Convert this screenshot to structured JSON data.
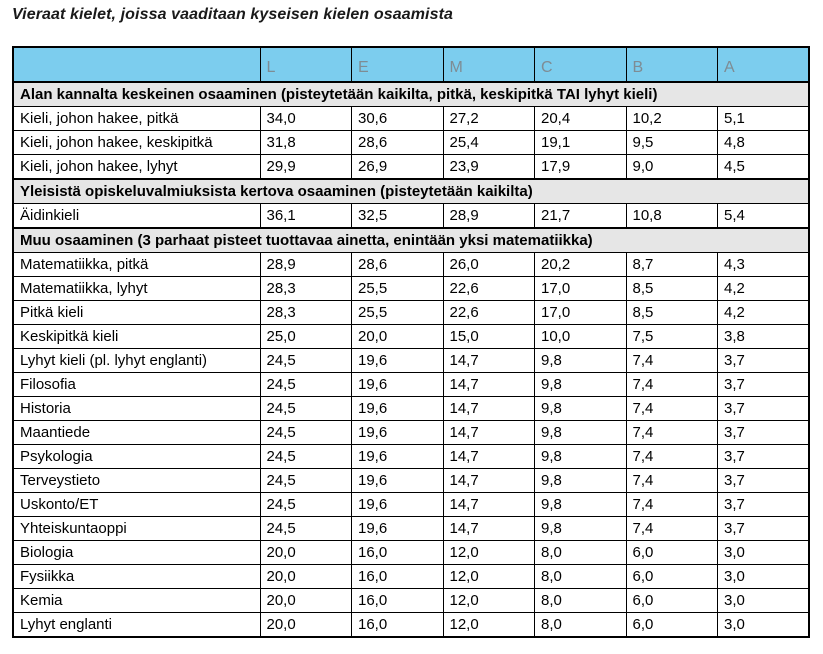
{
  "page": {
    "title": "Vieraat kielet, joissa vaaditaan kyseisen kielen osaamista"
  },
  "table": {
    "grade_headers": [
      "L",
      "E",
      "M",
      "C",
      "B",
      "A"
    ],
    "colors": {
      "header_bg": "#7ccdee",
      "header_text": "#7e8c94",
      "section_bg": "#e6e6e6",
      "row_bg": "#ffffff",
      "border": "#000000"
    },
    "rows": [
      {
        "type": "section",
        "label": "Alan kannalta keskeinen osaaminen (pisteytetään kaikilta, pitkä, keskipitkä TAI lyhyt kieli)"
      },
      {
        "type": "data",
        "label": "Kieli, johon hakee, pitkä",
        "values": [
          "34,0",
          "30,6",
          "27,2",
          "20,4",
          "10,2",
          "5,1"
        ]
      },
      {
        "type": "data",
        "label": "Kieli, johon hakee, keskipitkä",
        "values": [
          "31,8",
          "28,6",
          "25,4",
          "19,1",
          "9,5",
          "4,8"
        ]
      },
      {
        "type": "data",
        "label": "Kieli, johon hakee, lyhyt",
        "values": [
          "29,9",
          "26,9",
          "23,9",
          "17,9",
          "9,0",
          "4,5"
        ]
      },
      {
        "type": "section",
        "label": "Yleisistä opiskeluvalmiuksista kertova osaaminen (pisteytetään kaikilta)"
      },
      {
        "type": "data",
        "label": "Äidinkieli",
        "values": [
          "36,1",
          "32,5",
          "28,9",
          "21,7",
          "10,8",
          "5,4"
        ]
      },
      {
        "type": "section",
        "label": "Muu osaaminen (3 parhaat pisteet tuottavaa ainetta, enintään yksi matematiikka)"
      },
      {
        "type": "data",
        "label": "Matematiikka, pitkä",
        "values": [
          "28,9",
          "28,6",
          "26,0",
          "20,2",
          "8,7",
          "4,3"
        ]
      },
      {
        "type": "data",
        "label": "Matematiikka, lyhyt",
        "values": [
          "28,3",
          "25,5",
          "22,6",
          "17,0",
          "8,5",
          "4,2"
        ]
      },
      {
        "type": "data",
        "label": "Pitkä kieli",
        "values": [
          "28,3",
          "25,5",
          "22,6",
          "17,0",
          "8,5",
          "4,2"
        ]
      },
      {
        "type": "data",
        "label": "Keskipitkä kieli",
        "values": [
          "25,0",
          "20,0",
          "15,0",
          "10,0",
          "7,5",
          "3,8"
        ]
      },
      {
        "type": "data",
        "label": "Lyhyt kieli (pl. lyhyt englanti)",
        "values": [
          "24,5",
          "19,6",
          "14,7",
          "9,8",
          "7,4",
          "3,7"
        ]
      },
      {
        "type": "data",
        "label": "Filosofia",
        "values": [
          "24,5",
          "19,6",
          "14,7",
          "9,8",
          "7,4",
          "3,7"
        ]
      },
      {
        "type": "data",
        "label": "Historia",
        "values": [
          "24,5",
          "19,6",
          "14,7",
          "9,8",
          "7,4",
          "3,7"
        ]
      },
      {
        "type": "data",
        "label": "Maantiede",
        "values": [
          "24,5",
          "19,6",
          "14,7",
          "9,8",
          "7,4",
          "3,7"
        ]
      },
      {
        "type": "data",
        "label": "Psykologia",
        "values": [
          "24,5",
          "19,6",
          "14,7",
          "9,8",
          "7,4",
          "3,7"
        ]
      },
      {
        "type": "data",
        "label": "Terveystieto",
        "values": [
          "24,5",
          "19,6",
          "14,7",
          "9,8",
          "7,4",
          "3,7"
        ]
      },
      {
        "type": "data",
        "label": "Uskonto/ET",
        "values": [
          "24,5",
          "19,6",
          "14,7",
          "9,8",
          "7,4",
          "3,7"
        ]
      },
      {
        "type": "data",
        "label": "Yhteiskuntaoppi",
        "values": [
          "24,5",
          "19,6",
          "14,7",
          "9,8",
          "7,4",
          "3,7"
        ]
      },
      {
        "type": "data",
        "label": "Biologia",
        "values": [
          "20,0",
          "16,0",
          "12,0",
          "8,0",
          "6,0",
          "3,0"
        ]
      },
      {
        "type": "data",
        "label": "Fysiikka",
        "values": [
          "20,0",
          "16,0",
          "12,0",
          "8,0",
          "6,0",
          "3,0"
        ]
      },
      {
        "type": "data",
        "label": "Kemia",
        "values": [
          "20,0",
          "16,0",
          "12,0",
          "8,0",
          "6,0",
          "3,0"
        ]
      },
      {
        "type": "data",
        "label": "Lyhyt englanti",
        "values": [
          "20,0",
          "16,0",
          "12,0",
          "8,0",
          "6,0",
          "3,0"
        ]
      }
    ]
  }
}
